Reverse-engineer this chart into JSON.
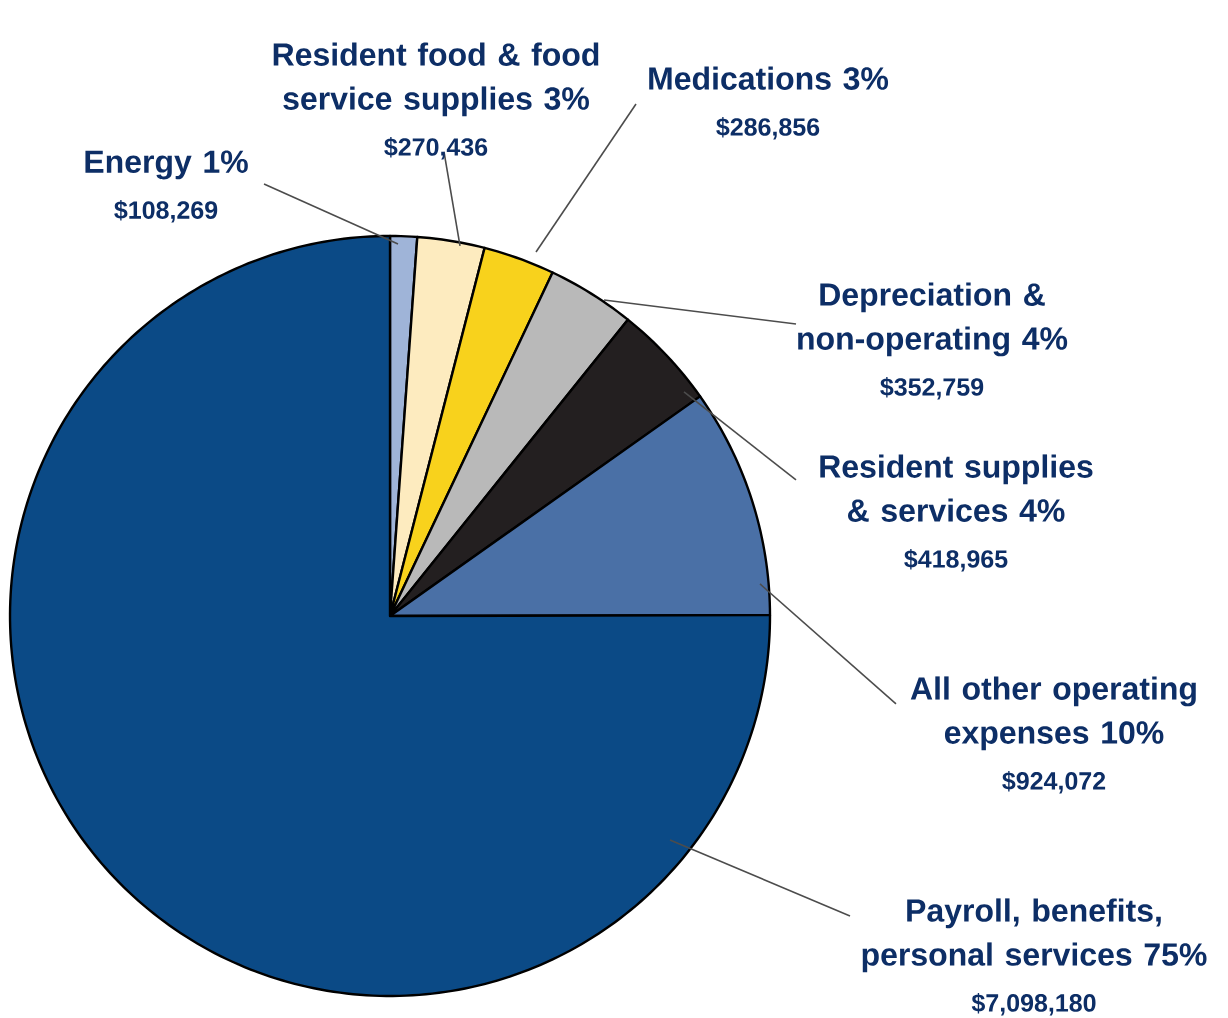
{
  "chart_data": {
    "type": "pie",
    "categories": [
      "Energy 1%",
      "Resident food & food service supplies 3%",
      "Medications 3%",
      "Depreciation & non-operating 4%",
      "Resident supplies & services 4%",
      "All other operating expenses 10%",
      "Payroll, benefits, personal services 75%"
    ],
    "values": [
      108269,
      270436,
      286856,
      352759,
      418965,
      924072,
      7098180
    ],
    "value_labels": [
      "$108,269",
      "$270,436",
      "$286,856",
      "$352,759",
      "$418,965",
      "$924,072",
      "$7,098,180"
    ],
    "colors": [
      "#9fb4d8",
      "#fdebbf",
      "#f8d21c",
      "#b9b9b9",
      "#231f20",
      "#4a70a6",
      "#0b4a86"
    ]
  }
}
